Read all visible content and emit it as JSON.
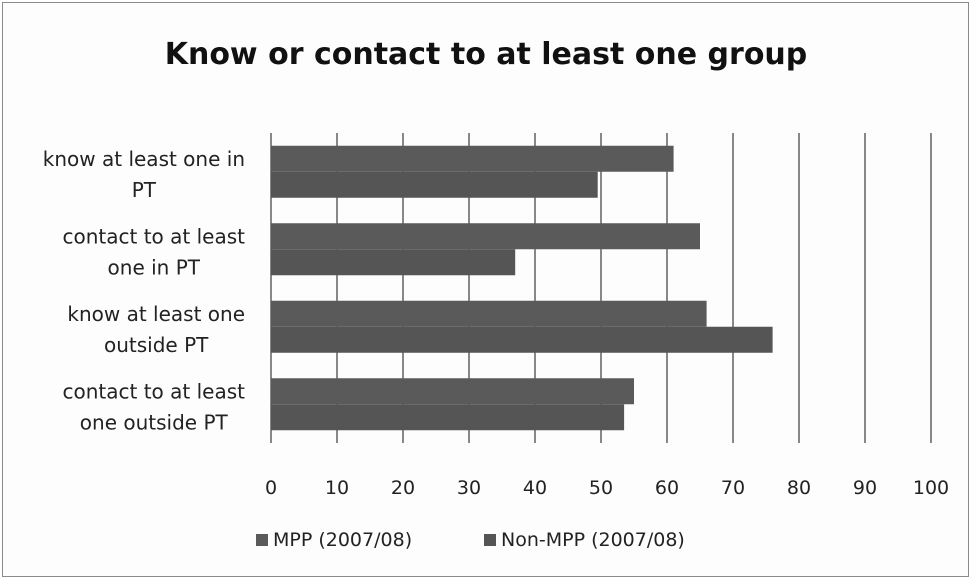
{
  "chart_data": {
    "type": "bar",
    "orientation": "horizontal",
    "title": "Know or contact to at least one group",
    "categories": [
      [
        "know at least one in",
        "PT"
      ],
      [
        "contact to at least",
        "one in PT"
      ],
      [
        "know at least one",
        "outside PT"
      ],
      [
        "contact to at least",
        "one outside PT"
      ]
    ],
    "series": [
      {
        "name": "MPP (2007/08)",
        "values": [
          61,
          65,
          66,
          55
        ],
        "color": "#5a5a5a"
      },
      {
        "name": "Non-MPP (2007/08)",
        "values": [
          49.5,
          37,
          76,
          53.5
        ],
        "color": "#555555"
      }
    ],
    "xlim": [
      0,
      100
    ],
    "xticks": [
      0,
      10,
      20,
      30,
      40,
      50,
      60,
      70,
      80,
      90,
      100
    ],
    "grid": true,
    "legend_position": "bottom"
  }
}
